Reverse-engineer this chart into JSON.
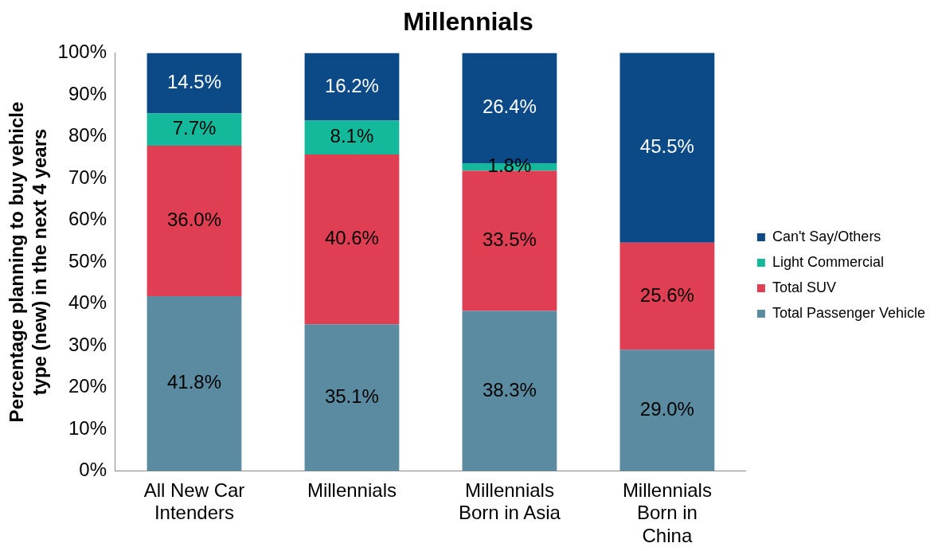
{
  "chart_data": {
    "type": "bar",
    "title": "Millennials",
    "ylabel": "Percentage planning to buy vehicle type (new) in the next 4 years",
    "categories": [
      "All New Car Intenders",
      "Millennials",
      "Millennials Born in Asia",
      "Millennials Born in China"
    ],
    "stacked": true,
    "legend": "right",
    "grid": false,
    "ylim": [
      0,
      100
    ],
    "yticks": [
      {
        "value": 0,
        "label": "0%"
      },
      {
        "value": 10,
        "label": "10%"
      },
      {
        "value": 20,
        "label": "20%"
      },
      {
        "value": 30,
        "label": "30%"
      },
      {
        "value": 40,
        "label": "40%"
      },
      {
        "value": 50,
        "label": "50%"
      },
      {
        "value": 60,
        "label": "60%"
      },
      {
        "value": 70,
        "label": "70%"
      },
      {
        "value": 80,
        "label": "80%"
      },
      {
        "value": 90,
        "label": "90%"
      },
      {
        "value": 100,
        "label": "100%"
      }
    ],
    "series": [
      {
        "name": "Total Passenger Vehicle",
        "color": "#5b8ba0",
        "values": [
          41.8,
          35.1,
          38.3,
          29.0
        ],
        "value_labels": [
          "41.8%",
          "35.1%",
          "38.3%",
          "29.0%"
        ]
      },
      {
        "name": "Total SUV",
        "color": "#e03f53",
        "values": [
          36.0,
          40.6,
          33.5,
          25.6
        ],
        "value_labels": [
          "36.0%",
          "40.6%",
          "33.5%",
          "25.6%"
        ]
      },
      {
        "name": "Light Commercial",
        "color": "#14b89b",
        "values": [
          7.7,
          8.1,
          1.8,
          null
        ],
        "value_labels": [
          "7.7%",
          "8.1%",
          "1.8%",
          null
        ]
      },
      {
        "name": "Can't Say/Others",
        "color": "#0b4a87",
        "values": [
          14.5,
          16.2,
          26.4,
          45.5
        ],
        "value_labels": [
          "14.5%",
          "16.2%",
          "26.4%",
          "45.5%"
        ]
      }
    ]
  }
}
